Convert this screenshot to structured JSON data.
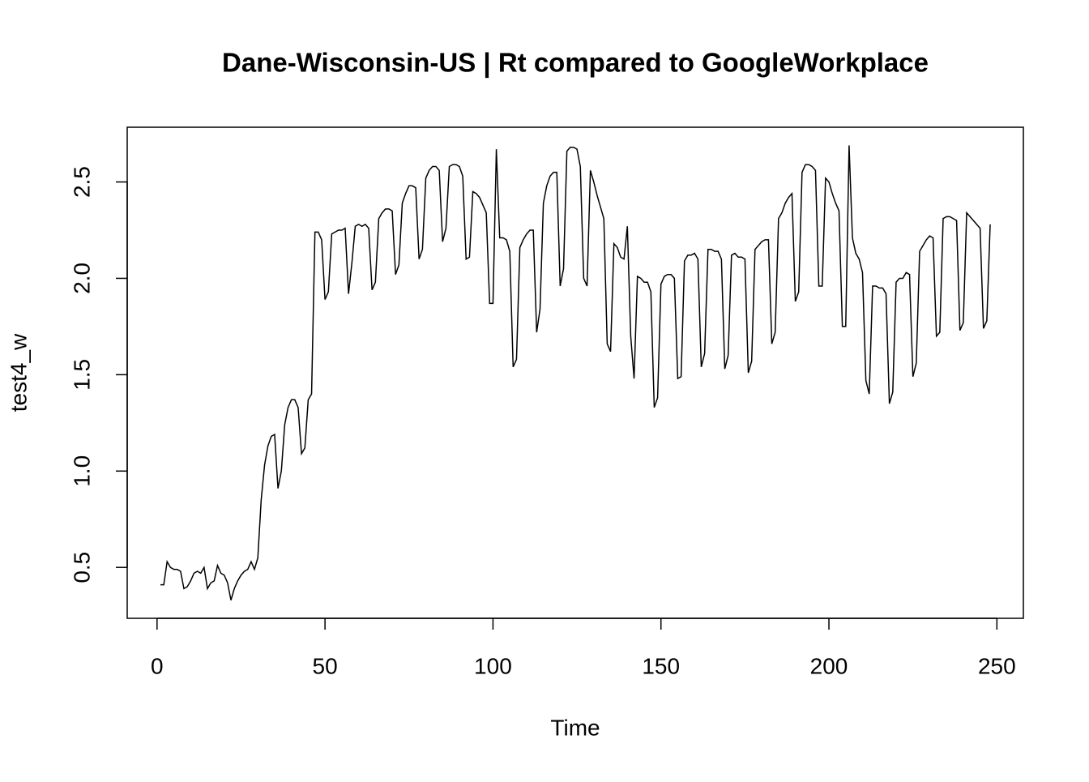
{
  "chart_data": {
    "type": "line",
    "title": "Dane-Wisconsin-US | Rt compared to GoogleWorkplace",
    "xlabel": "Time",
    "ylabel": "test4_w",
    "color": "#000000",
    "x": [
      1,
      2,
      3,
      4,
      5,
      6,
      7,
      8,
      9,
      10,
      11,
      12,
      13,
      14,
      15,
      16,
      17,
      18,
      19,
      20,
      21,
      22,
      23,
      24,
      25,
      26,
      27,
      28,
      29,
      30,
      31,
      32,
      33,
      34,
      35,
      36,
      37,
      38,
      39,
      40,
      41,
      42,
      43,
      44,
      45,
      46,
      47,
      48,
      49,
      50,
      51,
      52,
      53,
      54,
      55,
      56,
      57,
      58,
      59,
      60,
      61,
      62,
      63,
      64,
      65,
      66,
      67,
      68,
      69,
      70,
      71,
      72,
      73,
      74,
      75,
      76,
      77,
      78,
      79,
      80,
      81,
      82,
      83,
      84,
      85,
      86,
      87,
      88,
      89,
      90,
      91,
      92,
      93,
      94,
      95,
      96,
      97,
      98,
      99,
      100,
      101,
      102,
      103,
      104,
      105,
      106,
      107,
      108,
      109,
      110,
      111,
      112,
      113,
      114,
      115,
      116,
      117,
      118,
      119,
      120,
      121,
      122,
      123,
      124,
      125,
      126,
      127,
      128,
      129,
      130,
      131,
      132,
      133,
      134,
      135,
      136,
      137,
      138,
      139,
      140,
      141,
      142,
      143,
      144,
      145,
      146,
      147,
      148,
      149,
      150,
      151,
      152,
      153,
      154,
      155,
      156,
      157,
      158,
      159,
      160,
      161,
      162,
      163,
      164,
      165,
      166,
      167,
      168,
      169,
      170,
      171,
      172,
      173,
      174,
      175,
      176,
      177,
      178,
      179,
      180,
      181,
      182,
      183,
      184,
      185,
      186,
      187,
      188,
      189,
      190,
      191,
      192,
      193,
      194,
      195,
      196,
      197,
      198,
      199,
      200,
      201,
      202,
      203,
      204,
      205,
      206,
      207,
      208,
      209,
      210,
      211,
      212,
      213,
      214,
      215,
      216,
      217,
      218,
      219,
      220,
      221,
      222,
      223,
      224,
      225,
      226,
      227,
      228,
      229,
      230,
      231,
      232,
      233,
      234,
      235,
      236,
      237,
      238,
      239,
      240,
      241,
      242,
      243,
      244,
      245,
      246,
      247,
      248
    ],
    "values": [
      0.41,
      0.41,
      0.53,
      0.5,
      0.49,
      0.49,
      0.48,
      0.39,
      0.4,
      0.43,
      0.47,
      0.48,
      0.47,
      0.5,
      0.39,
      0.42,
      0.43,
      0.51,
      0.47,
      0.46,
      0.42,
      0.33,
      0.39,
      0.43,
      0.46,
      0.48,
      0.49,
      0.53,
      0.49,
      0.55,
      0.85,
      1.03,
      1.13,
      1.18,
      1.19,
      0.91,
      1.0,
      1.24,
      1.33,
      1.37,
      1.37,
      1.33,
      1.09,
      1.12,
      1.37,
      1.4,
      2.24,
      2.24,
      2.2,
      1.89,
      1.93,
      2.23,
      2.24,
      2.25,
      2.25,
      2.26,
      1.92,
      2.08,
      2.27,
      2.28,
      2.27,
      2.28,
      2.26,
      1.94,
      1.98,
      2.31,
      2.34,
      2.36,
      2.36,
      2.35,
      2.02,
      2.07,
      2.39,
      2.44,
      2.48,
      2.48,
      2.47,
      2.1,
      2.15,
      2.52,
      2.56,
      2.58,
      2.58,
      2.56,
      2.19,
      2.26,
      2.58,
      2.59,
      2.59,
      2.58,
      2.53,
      2.1,
      2.11,
      2.45,
      2.44,
      2.42,
      2.38,
      2.34,
      1.87,
      1.87,
      2.67,
      2.21,
      2.21,
      2.2,
      2.14,
      1.54,
      1.58,
      2.16,
      2.2,
      2.23,
      2.25,
      2.25,
      1.72,
      1.84,
      2.39,
      2.48,
      2.53,
      2.55,
      2.55,
      1.96,
      2.05,
      2.66,
      2.68,
      2.68,
      2.67,
      2.58,
      2.0,
      1.96,
      2.56,
      2.5,
      2.43,
      2.37,
      2.31,
      1.66,
      1.62,
      2.18,
      2.16,
      2.11,
      2.1,
      2.27,
      1.7,
      1.48,
      2.01,
      2.0,
      1.98,
      1.98,
      1.93,
      1.33,
      1.38,
      1.97,
      2.01,
      2.02,
      2.02,
      2.0,
      1.48,
      1.49,
      2.09,
      2.12,
      2.12,
      2.13,
      2.1,
      1.54,
      1.61,
      2.15,
      2.15,
      2.14,
      2.14,
      2.1,
      1.53,
      1.6,
      2.12,
      2.13,
      2.11,
      2.11,
      2.1,
      1.51,
      1.57,
      2.15,
      2.17,
      2.19,
      2.2,
      2.2,
      1.66,
      1.72,
      2.31,
      2.34,
      2.39,
      2.42,
      2.44,
      1.88,
      1.93,
      2.55,
      2.59,
      2.59,
      2.58,
      2.56,
      1.96,
      1.96,
      2.52,
      2.5,
      2.44,
      2.39,
      2.35,
      1.75,
      1.75,
      2.69,
      2.21,
      2.13,
      2.1,
      2.03,
      1.47,
      1.4,
      1.96,
      1.96,
      1.95,
      1.95,
      1.92,
      1.35,
      1.41,
      1.98,
      2.0,
      2.0,
      2.03,
      2.02,
      1.49,
      1.56,
      2.14,
      2.17,
      2.2,
      2.22,
      2.21,
      1.7,
      1.72,
      2.31,
      2.32,
      2.32,
      2.31,
      2.3,
      1.73,
      1.77,
      2.34,
      2.32,
      2.3,
      2.28,
      2.26,
      1.74,
      1.78,
      2.28
    ],
    "xlim": [
      -8.88,
      257.88
    ],
    "xticks": [
      0,
      50,
      100,
      150,
      200,
      250
    ],
    "ylim": [
      0.236,
      2.784
    ],
    "yticks": [
      0.5,
      {
        "value": 1,
        "label": "1.0"
      },
      1.5,
      {
        "value": 2,
        "label": "2.0"
      },
      2.5
    ]
  }
}
